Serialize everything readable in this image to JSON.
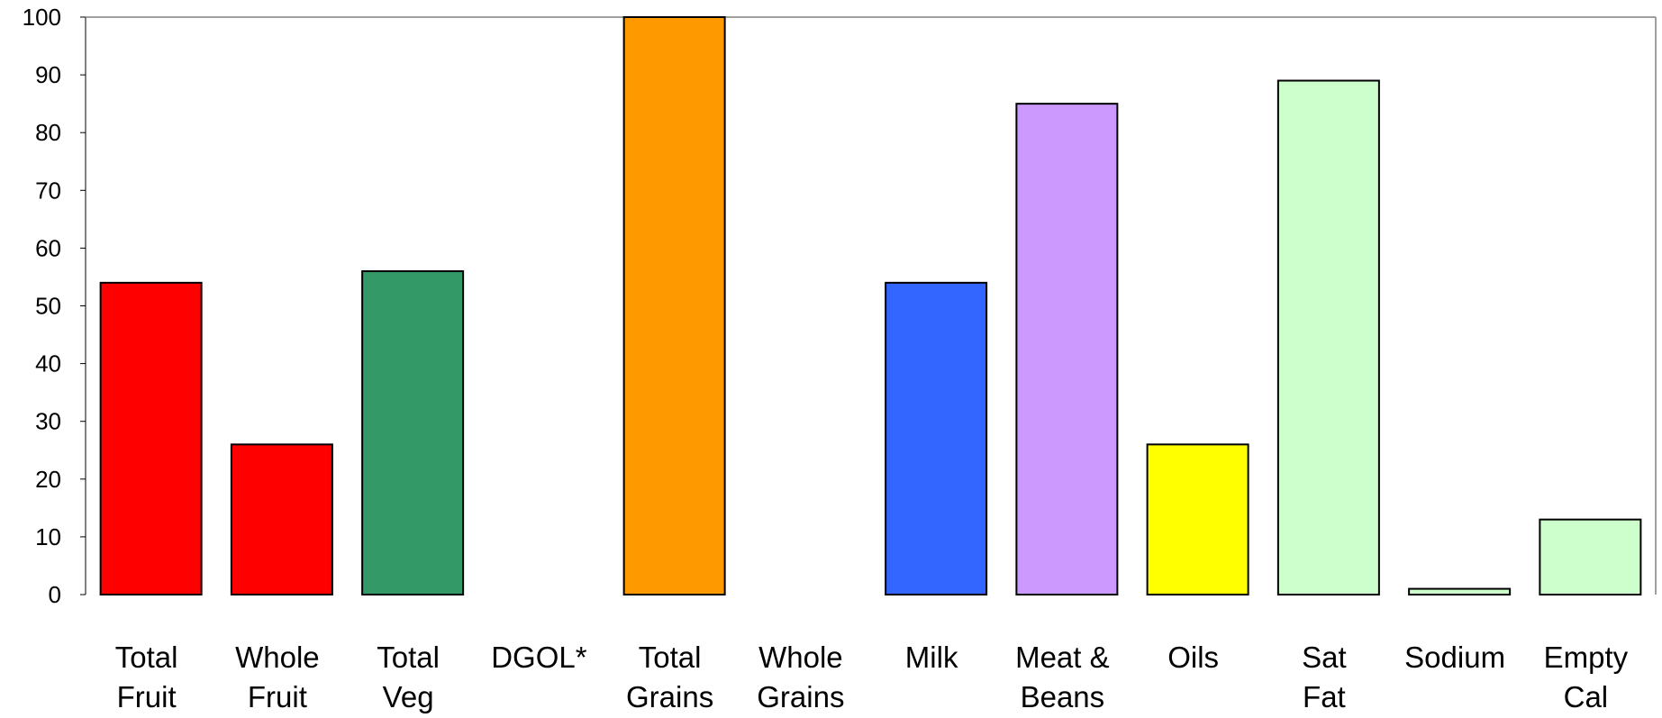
{
  "chart_data": {
    "type": "bar",
    "title": "",
    "xlabel": "",
    "ylabel": "",
    "ylim": [
      0,
      100
    ],
    "yticks": [
      0,
      10,
      20,
      30,
      40,
      50,
      60,
      70,
      80,
      90,
      100
    ],
    "grid": false,
    "legend": "none",
    "categories": [
      [
        "Total",
        "Fruit"
      ],
      [
        "Whole",
        "Fruit"
      ],
      [
        "Total",
        "Veg"
      ],
      [
        "DGOL*"
      ],
      [
        "Total",
        "Grains"
      ],
      [
        "Whole",
        "Grains"
      ],
      [
        "Milk"
      ],
      [
        "Meat &",
        "Beans"
      ],
      [
        "Oils"
      ],
      [
        "Sat",
        "Fat"
      ],
      [
        "Sodium"
      ],
      [
        "Empty",
        "Cal"
      ]
    ],
    "values": [
      54,
      26,
      56,
      0,
      100,
      0,
      54,
      85,
      26,
      89,
      1,
      13
    ],
    "colors": [
      "#ff0000",
      "#ff0000",
      "#339966",
      "#ffffff",
      "#ff9900",
      "#ffffff",
      "#3366ff",
      "#cc99ff",
      "#ffff00",
      "#ccffcc",
      "#ccffcc",
      "#ccffcc"
    ]
  }
}
